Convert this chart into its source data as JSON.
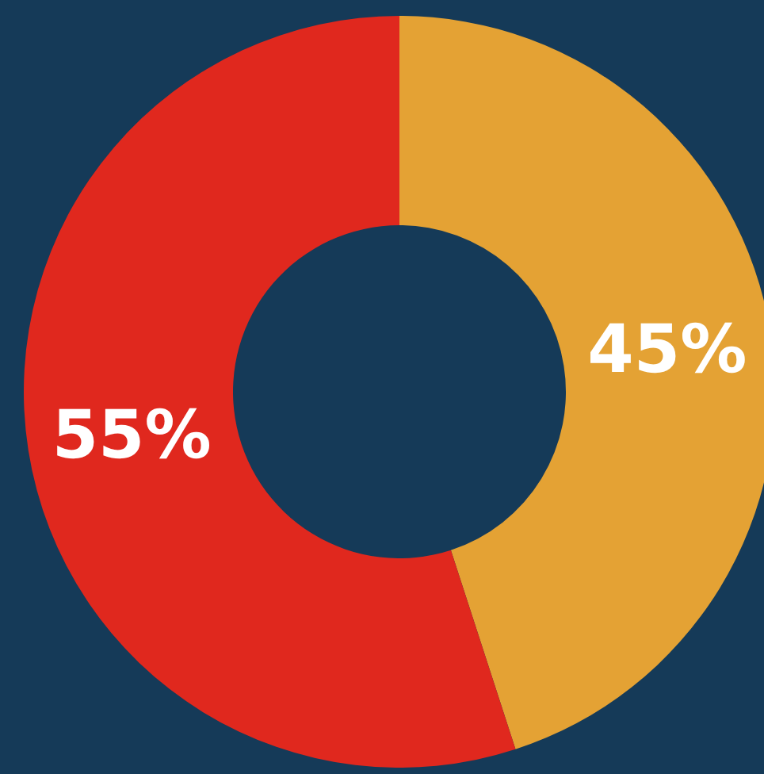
{
  "chart_data": {
    "type": "donut",
    "categories": [
      null,
      null
    ],
    "values": [
      45,
      55
    ],
    "colors": [
      "#e4a234",
      "#e0281e"
    ],
    "value_labels": [
      "45%",
      "55%"
    ],
    "legend": false
  }
}
